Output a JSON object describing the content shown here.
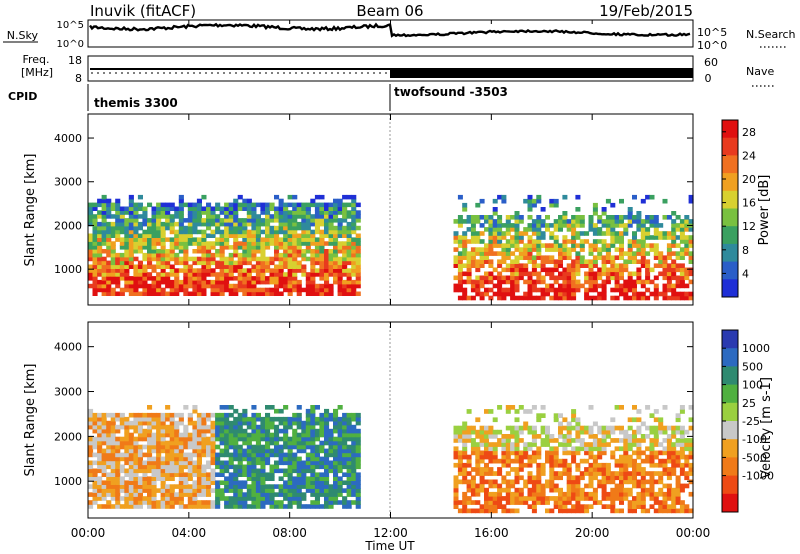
{
  "header": {
    "station": "Inuvik (fitACF)",
    "beam": "Beam 06",
    "date": "19/Feb/2015"
  },
  "top_panels": {
    "nsky_label": "N.Sky",
    "nsearch_label": "N.Search",
    "noise_ticks_left": [
      "10^5",
      "10^0"
    ],
    "noise_ticks_right": [
      "10^5",
      "10^0"
    ],
    "freq_label": "Freq.",
    "freq_unit": "[MHz]",
    "freq_ticks": [
      "18",
      "8"
    ],
    "nave_label": "Nave",
    "nave_ticks": [
      "60",
      "0"
    ],
    "cpid_label": "CPID",
    "cpid_segments": [
      {
        "name": "themis 3300",
        "start_hour": 0,
        "end_hour": 12
      },
      {
        "name": "twofsound -3503",
        "start_hour": 12,
        "end_hour": 24
      }
    ]
  },
  "chart_data": [
    {
      "type": "heatmap",
      "title": "Power",
      "ylabel": "Slant Range [km]",
      "xlabel": "Time UT",
      "x_ticks": [
        "00:00",
        "04:00",
        "08:00",
        "12:00",
        "16:00",
        "20:00",
        "00:00"
      ],
      "xlim_hours": [
        0,
        24
      ],
      "y_ticks": [
        1000,
        2000,
        3000,
        4000
      ],
      "ylim": [
        180,
        4550
      ],
      "colorbar": {
        "label": "Power [dB]",
        "ticks": [
          4,
          8,
          12,
          16,
          20,
          24,
          28
        ],
        "range": [
          0,
          30
        ],
        "colors": [
          "#1f2fd6",
          "#2a5ec8",
          "#2f8a9c",
          "#3aa060",
          "#79c040",
          "#d8d030",
          "#f0a020",
          "#f07020",
          "#e83a1e",
          "#e01010"
        ]
      },
      "echo_regions": [
        {
          "start_hour": 0.0,
          "end_hour": 10.8,
          "range_min": 400,
          "range_max": 2700
        },
        {
          "start_hour": 14.5,
          "end_hour": 24.0,
          "range_min": 300,
          "range_max": 2700
        }
      ]
    },
    {
      "type": "heatmap",
      "title": "Velocity",
      "ylabel": "Slant Range [km]",
      "xlabel": "Time UT",
      "x_ticks": [
        "00:00",
        "04:00",
        "08:00",
        "12:00",
        "16:00",
        "20:00",
        "00:00"
      ],
      "xlim_hours": [
        0,
        24
      ],
      "y_ticks": [
        1000,
        2000,
        3000,
        4000
      ],
      "ylim": [
        180,
        4550
      ],
      "colorbar": {
        "label": "Velocity [m s-1]",
        "ticks": [
          1000,
          500,
          100,
          25,
          -25,
          -100,
          -500,
          -1000
        ],
        "colors": [
          "#2a3ab0",
          "#2c6ac0",
          "#2f8a70",
          "#50b040",
          "#9ad040",
          "#c8c8c8",
          "#f0a020",
          "#f07a18",
          "#ee4a14",
          "#e01010"
        ]
      },
      "echo_regions": [
        {
          "start_hour": 0.0,
          "end_hour": 10.8,
          "range_min": 400,
          "range_max": 2700
        },
        {
          "start_hour": 14.5,
          "end_hour": 24.0,
          "range_min": 300,
          "range_max": 2700
        }
      ]
    }
  ]
}
